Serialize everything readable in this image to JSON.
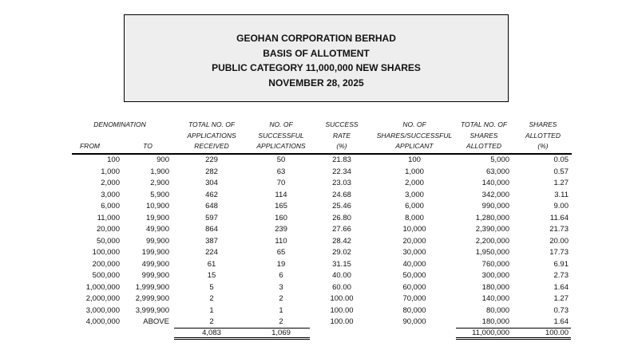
{
  "title": {
    "line1": "GEOHAN CORPORATION BERHAD",
    "line2": "BASIS OF ALLOTMENT",
    "line3": "PUBLIC CATEGORY 11,000,000 NEW SHARES",
    "line4": "NOVEMBER 28, 2025"
  },
  "headers": {
    "denomination": "DENOMINATION",
    "from": "FROM",
    "to": "TO",
    "total_apps": [
      "TOTAL NO. OF",
      "APPLICATIONS",
      "RECEIVED"
    ],
    "succ_apps": [
      "NO. OF",
      "SUCCESSFUL",
      "APPLICATIONS"
    ],
    "rate": [
      "SUCCESS",
      "RATE",
      "(%)"
    ],
    "shares_per": [
      "NO. OF",
      "SHARES/SUCCESSFUL",
      "APPLICANT"
    ],
    "total_shares": [
      "TOTAL NO. OF",
      "SHARES",
      "ALLOTTED"
    ],
    "pct": [
      "SHARES",
      "ALLOTTED",
      "(%)"
    ]
  },
  "rows": [
    [
      "100",
      "900",
      "229",
      "50",
      "21.83",
      "100",
      "5,000",
      "0.05"
    ],
    [
      "1,000",
      "1,900",
      "282",
      "63",
      "22.34",
      "1,000",
      "63,000",
      "0.57"
    ],
    [
      "2,000",
      "2,900",
      "304",
      "70",
      "23.03",
      "2,000",
      "140,000",
      "1.27"
    ],
    [
      "3,000",
      "5,900",
      "462",
      "114",
      "24.68",
      "3,000",
      "342,000",
      "3.11"
    ],
    [
      "6,000",
      "10,900",
      "648",
      "165",
      "25.46",
      "6,000",
      "990,000",
      "9.00"
    ],
    [
      "11,000",
      "19,900",
      "597",
      "160",
      "26.80",
      "8,000",
      "1,280,000",
      "11.64"
    ],
    [
      "20,000",
      "49,900",
      "864",
      "239",
      "27.66",
      "10,000",
      "2,390,000",
      "21.73"
    ],
    [
      "50,000",
      "99,900",
      "387",
      "110",
      "28.42",
      "20,000",
      "2,200,000",
      "20.00"
    ],
    [
      "100,000",
      "199,900",
      "224",
      "65",
      "29.02",
      "30,000",
      "1,950,000",
      "17.73"
    ],
    [
      "200,000",
      "499,900",
      "61",
      "19",
      "31.15",
      "40,000",
      "760,000",
      "6.91"
    ],
    [
      "500,000",
      "999,900",
      "15",
      "6",
      "40.00",
      "50,000",
      "300,000",
      "2.73"
    ],
    [
      "1,000,000",
      "1,999,900",
      "5",
      "3",
      "60.00",
      "60,000",
      "180,000",
      "1.64"
    ],
    [
      "2,000,000",
      "2,999,900",
      "2",
      "2",
      "100.00",
      "70,000",
      "140,000",
      "1.27"
    ],
    [
      "3,000,000",
      "3,999,900",
      "1",
      "1",
      "100.00",
      "80,000",
      "80,000",
      "0.73"
    ],
    [
      "4,000,000",
      "ABOVE",
      "2",
      "2",
      "100.00",
      "90,000",
      "180,000",
      "1.64"
    ]
  ],
  "totals": {
    "total_apps": "4,083",
    "succ_apps": "1,069",
    "total_shares": "11,000,000",
    "pct": "100.00"
  }
}
